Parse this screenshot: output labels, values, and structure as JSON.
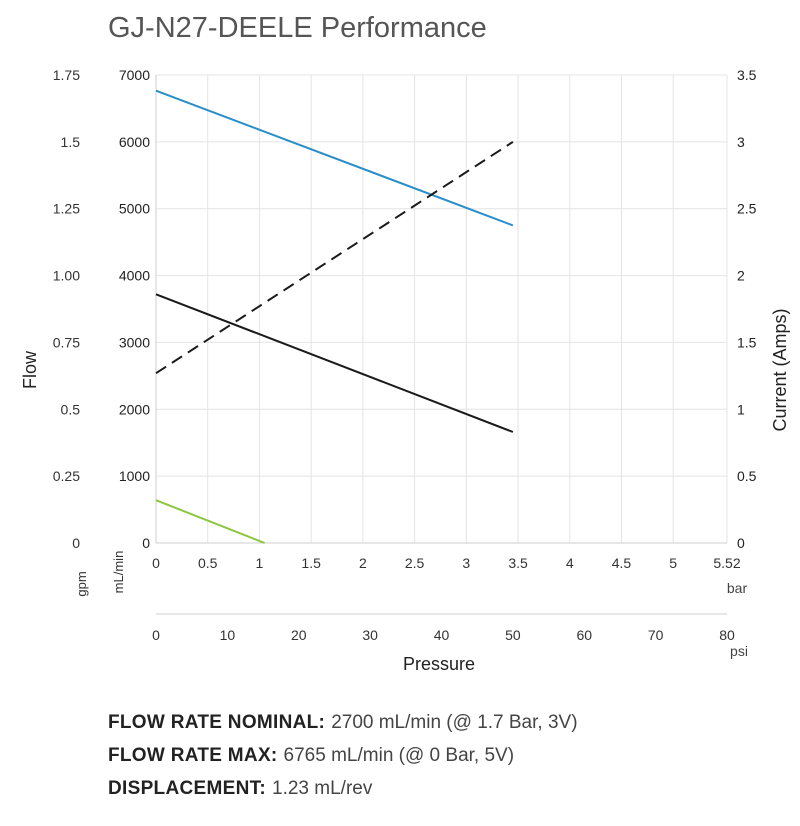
{
  "chart_data": {
    "type": "line",
    "title": "GJ-N27-DEELE Performance",
    "xlabel": "Pressure",
    "ylabel_left": "Flow",
    "ylabel_right": "Current (Amps)",
    "x_unit_bar": "bar",
    "x_unit_psi": "psi",
    "y_unit_mlmin": "mL/min",
    "y_unit_gpm": "gpm",
    "x_bar_ticks": [
      "0",
      "0.5",
      "1",
      "1.5",
      "2",
      "2.5",
      "3",
      "3.5",
      "4",
      "4.5",
      "5",
      "5.52"
    ],
    "x_psi_ticks": [
      "0",
      "10",
      "20",
      "30",
      "40",
      "50",
      "60",
      "70",
      "80"
    ],
    "y_mlmin_ticks": [
      "0",
      "1000",
      "2000",
      "3000",
      "4000",
      "5000",
      "6000",
      "7000"
    ],
    "y_gpm_ticks": [
      "0",
      "0.25",
      "0.5",
      "0.75",
      "1.00",
      "1.25",
      "1.5",
      "1.75"
    ],
    "y_amps_ticks": [
      "0",
      "0.5",
      "1",
      "1.5",
      "2",
      "2.5",
      "3",
      "3.5"
    ],
    "xlim": [
      0,
      5.52
    ],
    "ylim_mlmin": [
      0,
      7000
    ],
    "ylim_amps": [
      0,
      3.5
    ],
    "grid": true,
    "series": [
      {
        "id": "flow-5v",
        "axis": "mlmin",
        "color": "#2a8fc8",
        "dash": false,
        "x": [
          0,
          3.45
        ],
        "y": [
          6765,
          4750
        ]
      },
      {
        "id": "flow-3v",
        "axis": "mlmin",
        "color": "#1a1a1a",
        "dash": false,
        "x": [
          0,
          3.45
        ],
        "y": [
          3720,
          1660
        ]
      },
      {
        "id": "current-dashed",
        "axis": "amps",
        "color": "#1a1a1a",
        "dash": true,
        "x": [
          0,
          3.45
        ],
        "y": [
          1.27,
          3.0
        ]
      },
      {
        "id": "current-green",
        "axis": "amps",
        "color": "#8cc63f",
        "dash": false,
        "x": [
          0,
          1.05
        ],
        "y": [
          0.32,
          0.0
        ]
      }
    ]
  },
  "specs": [
    {
      "label": "FLOW RATE NOMINAL:",
      "value": "2700 mL/min (@ 1.7 Bar, 3V)"
    },
    {
      "label": "FLOW RATE MAX:",
      "value": "6765 mL/min (@ 0 Bar, 5V)"
    },
    {
      "label": "DISPLACEMENT:",
      "value": "1.23 mL/rev"
    }
  ]
}
